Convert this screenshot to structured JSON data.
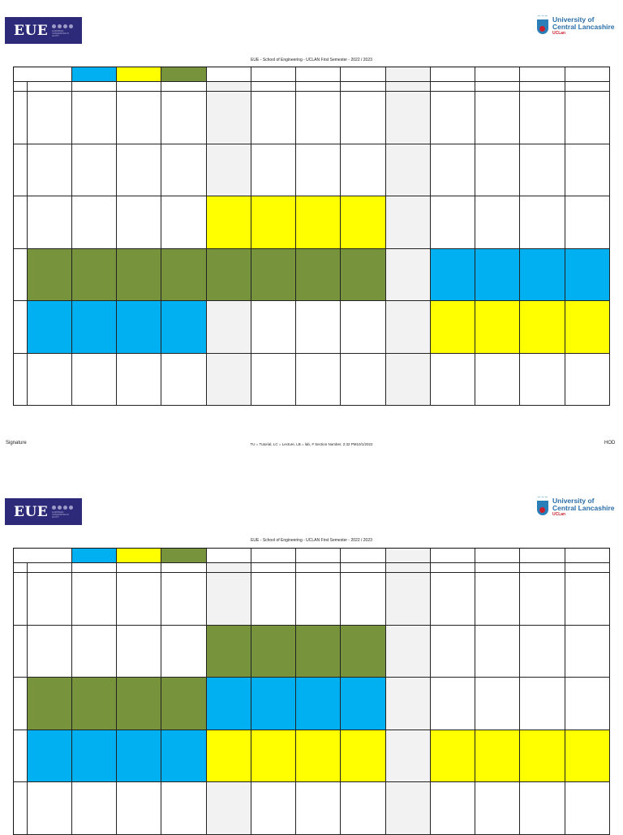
{
  "document": {
    "title": "EUE - School of Engineering - UCLAN  First Semester - 2022 / 2023",
    "logos": {
      "left": {
        "text": "EUE",
        "subtext": "EUROPEAN UNIVERSITIES IN EGYPT",
        "color": "#2e2a7a"
      },
      "right": {
        "line1": "University of",
        "line2": "Central Lancashire",
        "line3": "UCLan",
        "color": "#2a6ea8",
        "accent": "#c8202e"
      }
    },
    "colors": {
      "blue": "#00b0f0",
      "yellow": "#ffff00",
      "green": "#77933c",
      "grey": "#f2f2f2"
    },
    "footer": {
      "left": "Signature",
      "center": "TU = Tutorial, LC = Lecture, LB = lab, # Section Number, 2:32 PM10/1/2022",
      "right": "HOD"
    }
  },
  "pages": [
    {
      "header_colors": [
        "blue",
        "yellow",
        "green"
      ],
      "grey_columns_body": [
        4,
        8
      ],
      "rows": [
        [
          "",
          "",
          "",
          "",
          "grey",
          "",
          "",
          "",
          "grey",
          "",
          "",
          "",
          ""
        ],
        [
          "",
          "",
          "",
          "",
          "grey",
          "",
          "",
          "",
          "grey",
          "",
          "",
          "",
          ""
        ],
        [
          "",
          "",
          "",
          "",
          "yellow",
          "yellow",
          "yellow",
          "yellow",
          "grey",
          "",
          "",
          "",
          ""
        ],
        [
          "green",
          "green",
          "green",
          "green",
          "green",
          "green",
          "green",
          "green",
          "grey",
          "blue",
          "blue",
          "blue",
          "blue"
        ],
        [
          "blue",
          "blue",
          "blue",
          "blue",
          "grey",
          "",
          "",
          "",
          "grey",
          "yellow",
          "yellow",
          "yellow",
          "yellow"
        ],
        [
          "",
          "",
          "",
          "",
          "grey",
          "",
          "",
          "",
          "grey",
          "",
          "",
          "",
          ""
        ]
      ]
    },
    {
      "header_colors": [
        "blue",
        "yellow",
        "green"
      ],
      "grey_columns_body": [
        4,
        8
      ],
      "rows": [
        [
          "",
          "",
          "",
          "",
          "grey",
          "",
          "",
          "",
          "grey",
          "",
          "",
          "",
          ""
        ],
        [
          "",
          "",
          "",
          "",
          "green",
          "green",
          "green",
          "green",
          "grey",
          "",
          "",
          "",
          ""
        ],
        [
          "green",
          "green",
          "green",
          "green",
          "blue",
          "blue",
          "blue",
          "blue",
          "grey",
          "",
          "",
          "",
          ""
        ],
        [
          "blue",
          "blue",
          "blue",
          "blue",
          "yellow",
          "yellow",
          "yellow",
          "yellow",
          "grey",
          "yellow",
          "yellow",
          "yellow",
          "yellow"
        ],
        [
          "",
          "",
          "",
          "",
          "grey",
          "",
          "",
          "",
          "grey",
          "",
          "",
          "",
          ""
        ]
      ]
    }
  ]
}
